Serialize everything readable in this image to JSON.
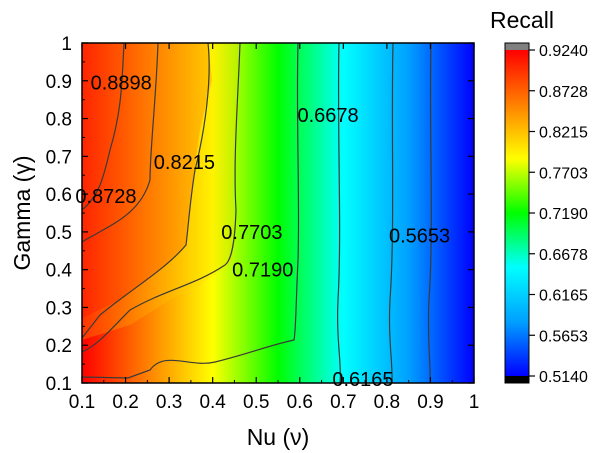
{
  "chart_data": {
    "type": "heatmap",
    "subtype": "filled-contour",
    "xlabel": "Nu (ν)",
    "ylabel": "Gamma (γ)",
    "xlim": [
      0.1,
      1.0
    ],
    "ylim": [
      0.1,
      1.0
    ],
    "x_ticks": [
      "0.1",
      "0.2",
      "0.3",
      "0.4",
      "0.5",
      "0.6",
      "0.7",
      "0.8",
      "0.9",
      "1"
    ],
    "y_ticks": [
      "0.1",
      "0.2",
      "0.3",
      "0.4",
      "0.5",
      "0.6",
      "0.7",
      "0.8",
      "0.9",
      "1"
    ],
    "colorbar": {
      "title": "Recall",
      "min": 0.514,
      "max": 0.924,
      "tick_labels": [
        "0.9240",
        "0.8728",
        "0.8215",
        "0.7703",
        "0.7190",
        "0.6678",
        "0.6165",
        "0.5653",
        "0.5140"
      ],
      "over_color": "#808080",
      "under_color": "#000000"
    },
    "colors": [
      "#0000ff",
      "#00a0ff",
      "#00ffff",
      "#00ff00",
      "#ffff00",
      "#ff8000",
      "#ff0000"
    ],
    "contour_labels": [
      {
        "text": "0.8898",
        "x": 0.19,
        "y": 0.895
      },
      {
        "text": "0.8215",
        "x": 0.335,
        "y": 0.685
      },
      {
        "text": "0.8728",
        "x": 0.155,
        "y": 0.595
      },
      {
        "text": "0.7703",
        "x": 0.49,
        "y": 0.5
      },
      {
        "text": "0.7190",
        "x": 0.515,
        "y": 0.4
      },
      {
        "text": "0.6678",
        "x": 0.665,
        "y": 0.81
      },
      {
        "text": "0.5653",
        "x": 0.875,
        "y": 0.49
      },
      {
        "text": "0.6165",
        "x": 0.745,
        "y": 0.11
      }
    ],
    "grid": false
  }
}
